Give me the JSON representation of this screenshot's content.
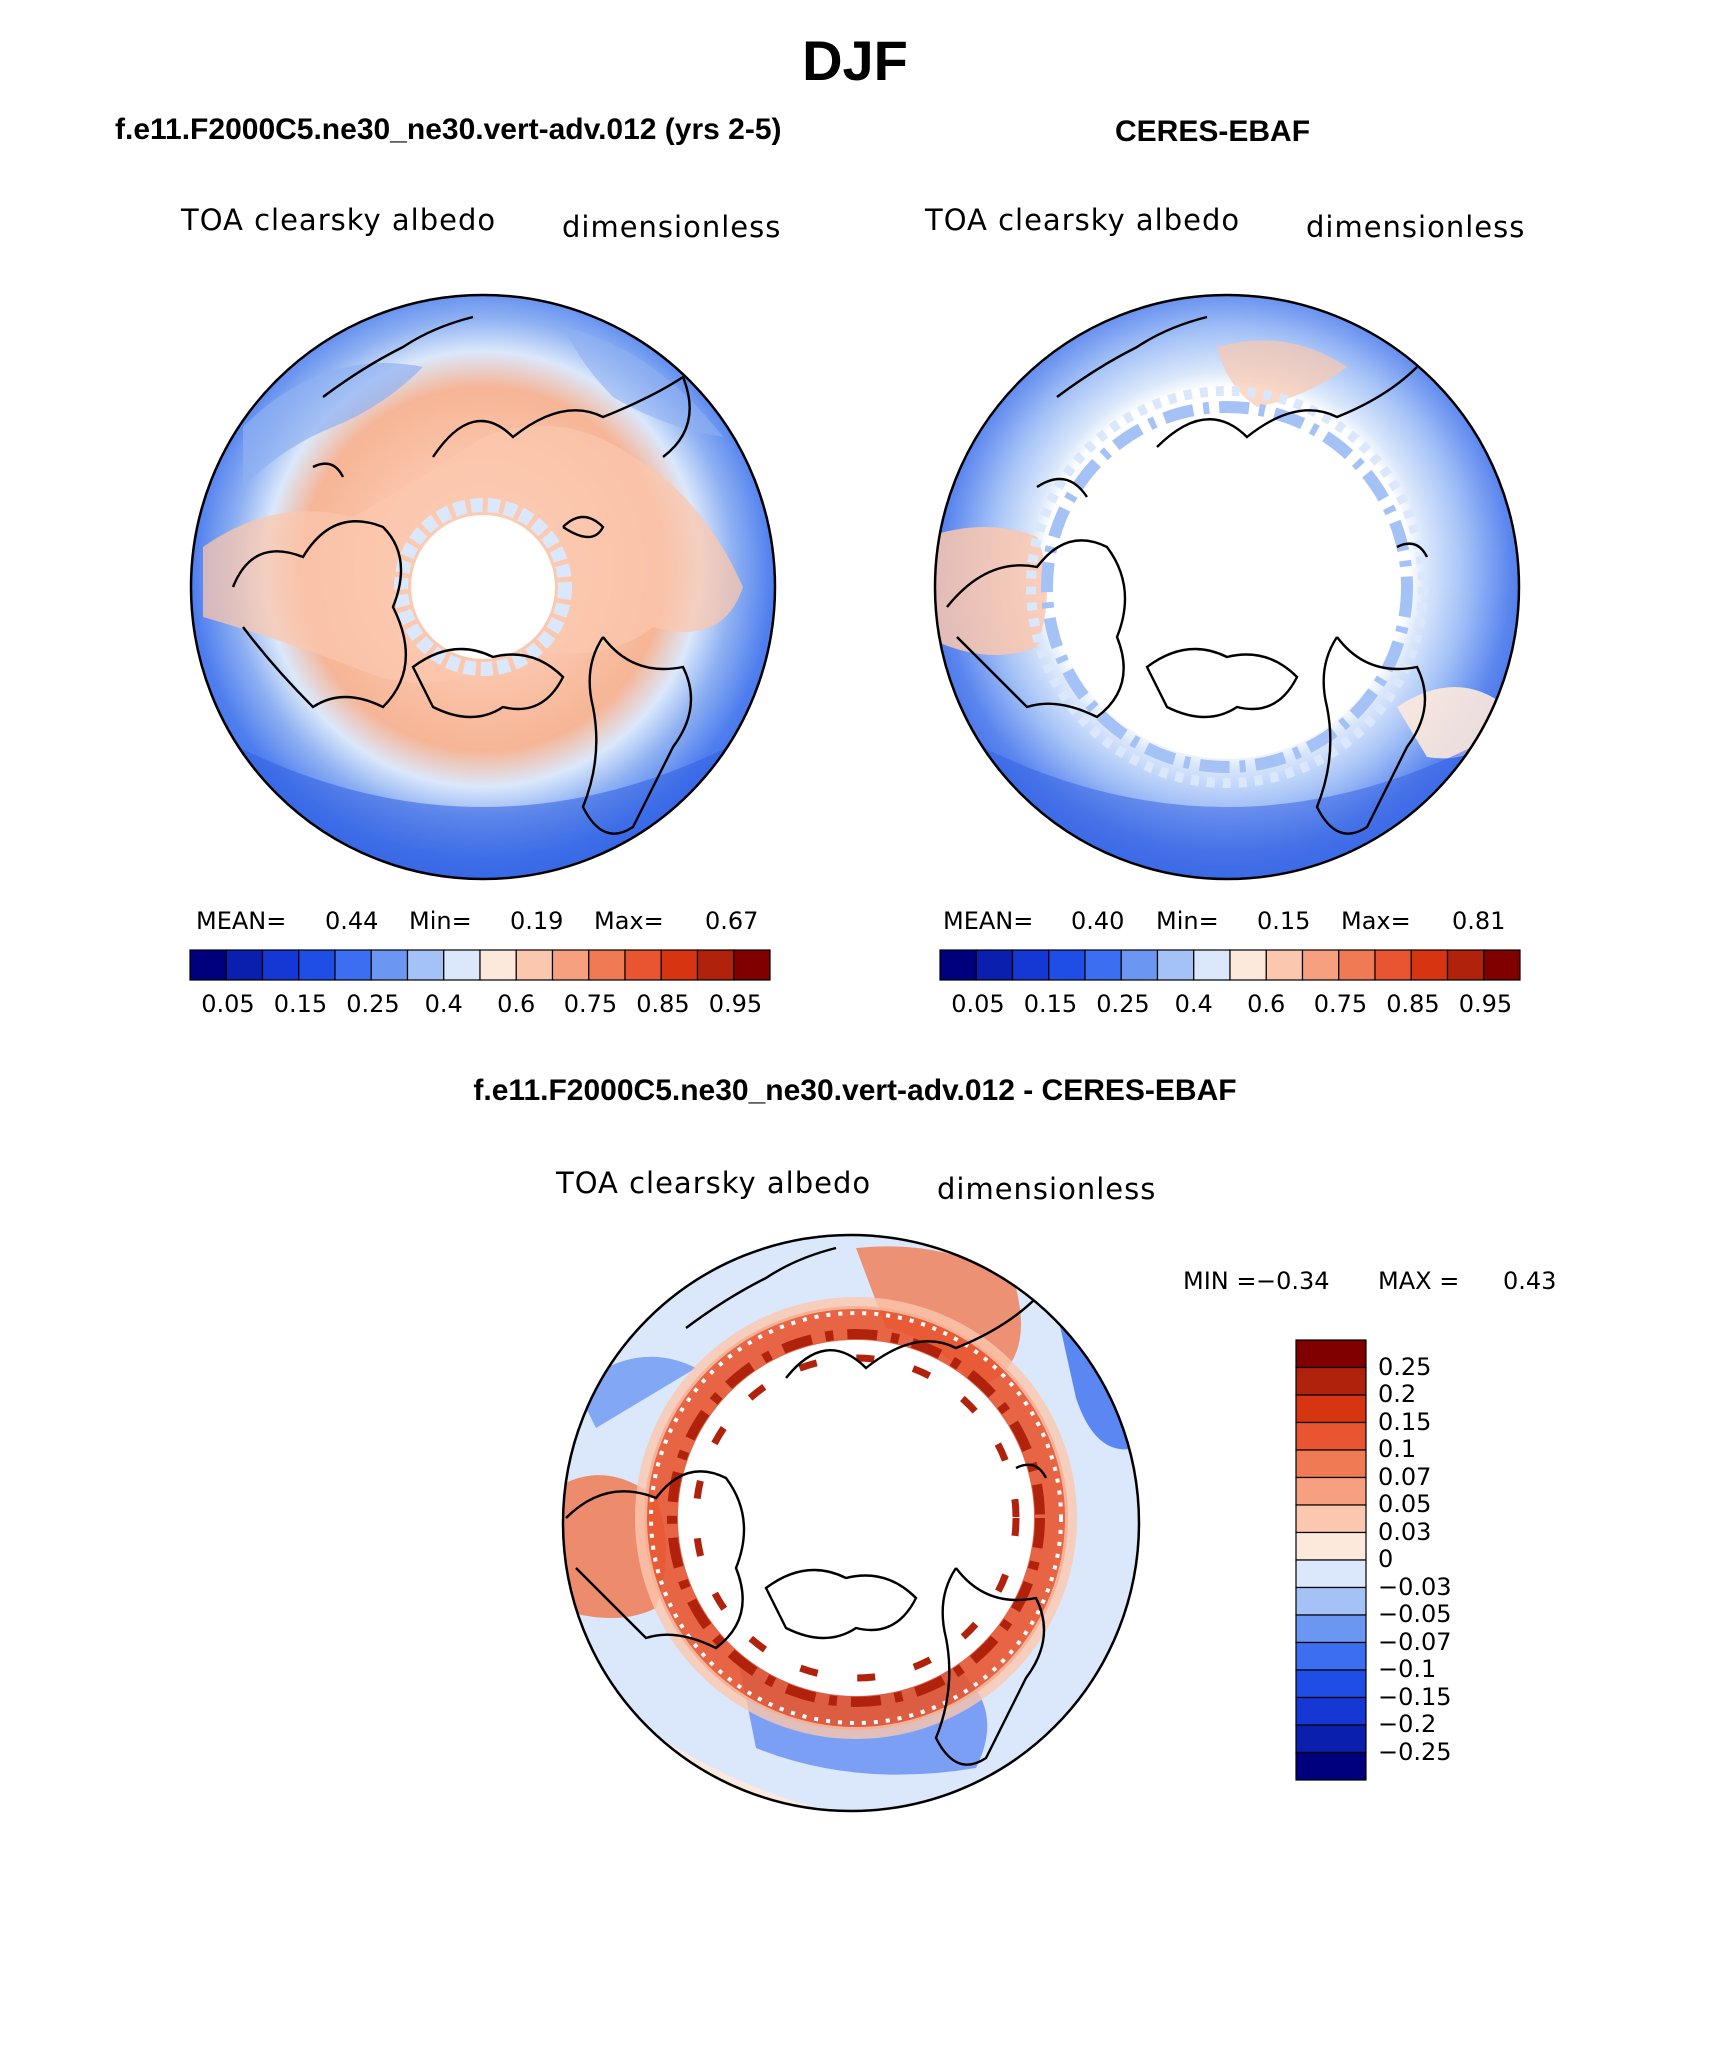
{
  "figure": {
    "season_title": "DJF"
  },
  "panels": [
    {
      "id": "model",
      "case_title": "f.e11.F2000C5.ne30_ne30.vert-adv.012 (yrs 2-5)",
      "variable_label": "TOA clearsky albedo",
      "units_label": "dimensionless",
      "stats": {
        "mean_label": "MEAN=",
        "mean_value": "0.44",
        "min_label": "Min=",
        "min_value": "0.19",
        "max_label": "Max=",
        "max_value": "0.67"
      },
      "map": {
        "projection": "north-polar-stereographic",
        "missing_data_region": "pole"
      }
    },
    {
      "id": "obs",
      "case_title": "CERES-EBAF",
      "variable_label": "TOA clearsky albedo",
      "units_label": "dimensionless",
      "stats": {
        "mean_label": "MEAN=",
        "mean_value": "0.40",
        "min_label": "Min=",
        "min_value": "0.15",
        "max_label": "Max=",
        "max_value": "0.81"
      },
      "map": {
        "projection": "north-polar-stereographic",
        "missing_data_region": "polar-night"
      }
    }
  ],
  "abs_colorbar": {
    "colors": [
      "#00007f",
      "#0a1fae",
      "#1537d3",
      "#1f4ee6",
      "#3b6ef0",
      "#6b96f2",
      "#a5c2f7",
      "#dbe8fb",
      "#fde9dc",
      "#fbc7ae",
      "#f6a07f",
      "#f07a53",
      "#e85530",
      "#d73512",
      "#b0220b",
      "#800000"
    ],
    "tick_labels": [
      "0.05",
      "0.15",
      "0.25",
      "0.4",
      "0.6",
      "0.75",
      "0.85",
      "0.95"
    ]
  },
  "diff_panel": {
    "case_title": "f.e11.F2000C5.ne30_ne30.vert-adv.012 - CERES-EBAF",
    "variable_label": "TOA clearsky albedo",
    "units_label": "dimensionless",
    "stats": {
      "min_label": "MIN =",
      "min_value": "−0.34",
      "max_label": "MAX =",
      "max_value": "0.43"
    },
    "colorbar": {
      "colors_top_to_bottom": [
        "#800000",
        "#b0220b",
        "#d73512",
        "#e85530",
        "#f07a53",
        "#f6a07f",
        "#fbc7ae",
        "#fde9dc",
        "#dbe8fb",
        "#a5c2f7",
        "#6b96f2",
        "#3b6ef0",
        "#1f4ee6",
        "#1537d3",
        "#0a1fae",
        "#00007f"
      ],
      "tick_labels": [
        "0.25",
        "0.2",
        "0.15",
        "0.1",
        "0.07",
        "0.05",
        "0.03",
        "0",
        "−0.03",
        "−0.05",
        "−0.07",
        "−0.1",
        "−0.15",
        "−0.2",
        "−0.25"
      ]
    }
  }
}
